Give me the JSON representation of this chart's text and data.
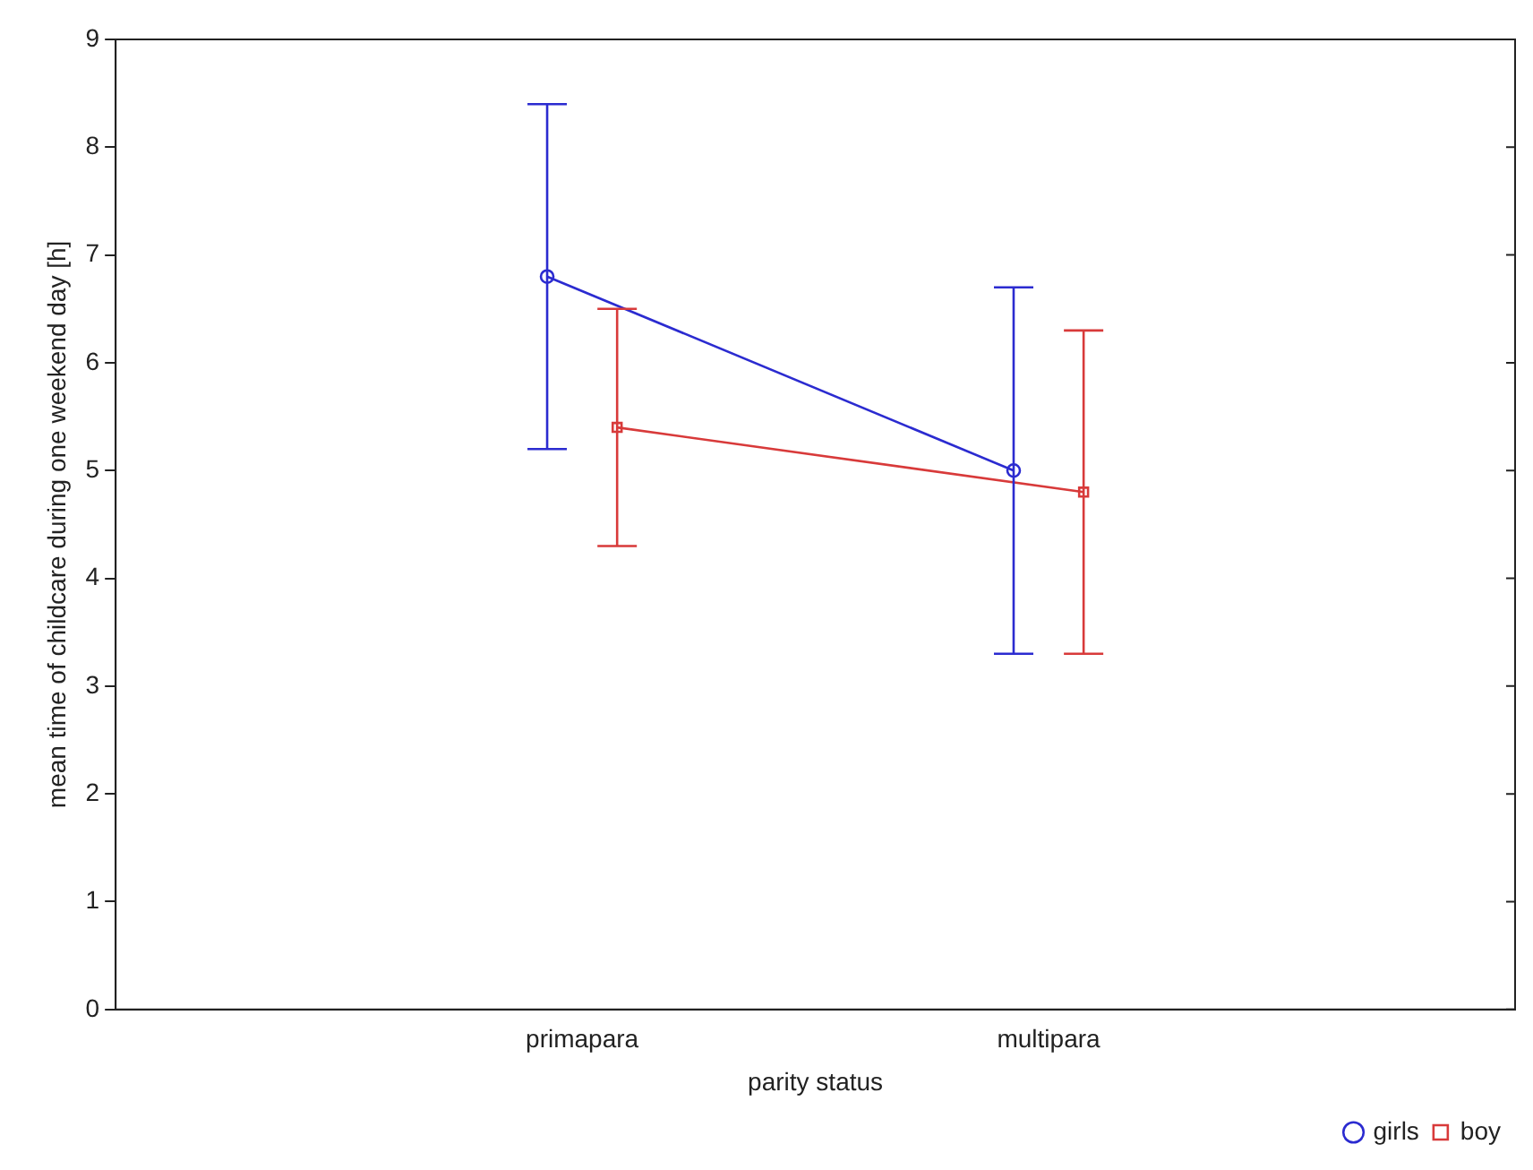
{
  "chart_data": {
    "type": "line",
    "xlabel": "parity status",
    "ylabel": "mean time of childcare during one weekend day [h]",
    "categories": [
      "primapara",
      "multipara"
    ],
    "ylim": [
      0,
      9
    ],
    "yticks": [
      0,
      1,
      2,
      3,
      4,
      5,
      6,
      7,
      8,
      9
    ],
    "grid": false,
    "legend": "bottom right",
    "line_style": "solid",
    "series": [
      {
        "name": "girls",
        "color": "#2b2bd0",
        "marker": "circle",
        "values": [
          6.8,
          5.0
        ],
        "errors": [
          [
            5.2,
            8.4
          ],
          [
            3.3,
            6.7
          ]
        ]
      },
      {
        "name": "boy",
        "color": "#d83a3a",
        "marker": "square",
        "values": [
          5.4,
          4.8
        ],
        "errors": [
          [
            4.3,
            6.5
          ],
          [
            3.3,
            6.3
          ]
        ]
      }
    ]
  }
}
